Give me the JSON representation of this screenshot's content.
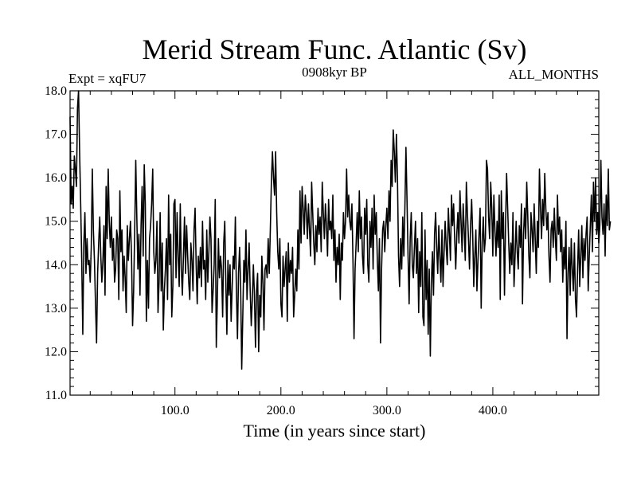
{
  "chart_data": {
    "type": "line",
    "title": "Merid Stream Func. Atlantic (Sv)",
    "subtitle_left": "Expt = xqFU7",
    "subtitle_center": "0908kyr BP",
    "subtitle_right": "ALL_MONTHS",
    "xlabel": "Time (in years since start)",
    "ylabel": "",
    "xlim": [
      1,
      500
    ],
    "ylim": [
      11.0,
      18.0
    ],
    "x_ticks": [
      100,
      200,
      300,
      400
    ],
    "x_tick_labels": [
      "100.0",
      "200.0",
      "300.0",
      "400.0"
    ],
    "y_ticks": [
      11,
      12,
      13,
      14,
      15,
      16,
      17,
      18
    ],
    "y_tick_labels": [
      "11.0",
      "12.0",
      "13.0",
      "14.0",
      "15.0",
      "16.0",
      "17.0",
      "18.0"
    ],
    "grid": false,
    "series": [
      {
        "name": "Merid Stream Func. Atlantic",
        "color": "#000000",
        "x_start": 1,
        "x_step": 1,
        "values": [
          17.4,
          15.4,
          15.8,
          15.3,
          16.5,
          16.2,
          15.8,
          17.6,
          18.0,
          16.6,
          15.4,
          14.1,
          12.4,
          14.5,
          15.2,
          13.8,
          14.6,
          14.0,
          14.1,
          13.6,
          14.4,
          16.2,
          14.8,
          14.1,
          13.1,
          12.2,
          13.8,
          14.5,
          15.1,
          14.2,
          13.6,
          14.1,
          14.9,
          13.3,
          15.8,
          14.6,
          16.2,
          15.0,
          14.4,
          15.1,
          14.1,
          14.6,
          13.6,
          13.9,
          14.8,
          14.6,
          13.2,
          15.7,
          14.3,
          14.8,
          13.4,
          14.2,
          13.7,
          12.9,
          14.9,
          14.1,
          14.6,
          15.0,
          14.2,
          12.6,
          13.4,
          14.8,
          16.4,
          15.1,
          13.9,
          14.7,
          13.3,
          14.9,
          15.8,
          14.2,
          16.3,
          15.4,
          12.7,
          14.1,
          13.0,
          14.6,
          14.9,
          15.4,
          16.2,
          14.3,
          13.8,
          14.1,
          15.0,
          12.9,
          13.6,
          15.2,
          13.4,
          14.5,
          12.5,
          13.4,
          13.9,
          14.6,
          13.2,
          15.6,
          14.0,
          14.7,
          12.8,
          13.5,
          15.4,
          15.5,
          13.7,
          15.2,
          14.2,
          13.5,
          15.4,
          13.9,
          13.3,
          14.2,
          15.1,
          13.8,
          14.9,
          14.2,
          13.6,
          13.2,
          14.5,
          14.1,
          13.4,
          14.8,
          15.3,
          14.0,
          13.1,
          14.2,
          13.7,
          14.4,
          13.5,
          15.0,
          13.9,
          14.1,
          13.2,
          14.8,
          13.6,
          14.3,
          15.1,
          14.6,
          12.9,
          13.4,
          14.0,
          15.5,
          12.1,
          13.2,
          14.6,
          13.7,
          14.2,
          13.9,
          12.8,
          14.5,
          15.0,
          13.6,
          12.4,
          14.1,
          13.3,
          14.0,
          12.7,
          13.5,
          14.2,
          13.9,
          15.1,
          13.4,
          12.3,
          13.8,
          14.4,
          13.5,
          11.6,
          12.8,
          14.1,
          13.6,
          14.8,
          13.2,
          13.9,
          14.5,
          13.4,
          12.6,
          13.2,
          14.0,
          13.3,
          12.1,
          13.4,
          13.8,
          12.0,
          13.3,
          12.8,
          14.2,
          13.6,
          12.5,
          13.9,
          14.0,
          13.7,
          14.6,
          13.8,
          14.8,
          15.9,
          16.6,
          16.0,
          15.6,
          16.6,
          15.2,
          14.3,
          13.9,
          14.6,
          13.1,
          12.8,
          14.2,
          13.5,
          13.9,
          14.3,
          12.7,
          14.5,
          13.6,
          14.1,
          13.8,
          14.4,
          12.8,
          13.3,
          13.9,
          13.4,
          14.8,
          13.9,
          15.7,
          14.5,
          15.8,
          15.3,
          14.7,
          15.6,
          15.2,
          14.6,
          15.4,
          14.8,
          14.2,
          15.9,
          15.2,
          14.5,
          14.0,
          14.9,
          14.3,
          15.3,
          14.7,
          15.1,
          14.3,
          15.9,
          15.2,
          14.6,
          15.4,
          14.9,
          14.2,
          15.5,
          14.8,
          15.0,
          14.6,
          15.6,
          14.1,
          14.8,
          13.6,
          14.4,
          14.0,
          14.7,
          13.2,
          14.5,
          14.1,
          15.2,
          14.6,
          15.0,
          16.2,
          15.1,
          15.6,
          15.0,
          14.8,
          15.4,
          14.1,
          12.3,
          13.9,
          14.5,
          15.2,
          14.3,
          15.7,
          14.6,
          15.1,
          14.2,
          13.8,
          15.3,
          14.7,
          15.5,
          14.0,
          13.6,
          15.0,
          14.4,
          15.3,
          13.9,
          15.6,
          14.7,
          15.2,
          14.1,
          13.4,
          14.6,
          12.2,
          13.9,
          14.8,
          15.0,
          14.3,
          14.9,
          15.3,
          14.6,
          15.7,
          15.0,
          16.4,
          15.8,
          17.1,
          16.6,
          15.9,
          17.0,
          16.0,
          14.2,
          13.5,
          14.6,
          13.9,
          15.1,
          14.2,
          15.3,
          16.7,
          15.5,
          14.2,
          13.1,
          14.6,
          15.2,
          14.0,
          13.7,
          14.4,
          15.0,
          13.8,
          14.6,
          12.9,
          14.3,
          13.5,
          15.2,
          12.8,
          12.6,
          14.8,
          13.2,
          14.1,
          12.4,
          13.9,
          11.9,
          13.6,
          14.3,
          13.3,
          14.7,
          15.2,
          14.4,
          13.8,
          14.9,
          14.2,
          13.6,
          14.8,
          13.5,
          14.3,
          15.0,
          14.4,
          14.0,
          15.3,
          14.7,
          14.1,
          15.6,
          14.9,
          15.4,
          14.6,
          13.9,
          14.7,
          15.2,
          14.5,
          15.7,
          15.0,
          14.3,
          15.4,
          14.8,
          14.1,
          15.9,
          15.2,
          14.6,
          13.9,
          14.9,
          15.5,
          14.7,
          13.5,
          14.2,
          14.8,
          13.4,
          14.1,
          14.7,
          15.3,
          13.0,
          14.5,
          15.1,
          14.3,
          14.6,
          16.4,
          16.2,
          15.1,
          14.6,
          15.9,
          15.3,
          14.2,
          15.6,
          14.8,
          14.2,
          15.0,
          14.4,
          15.6,
          13.2,
          15.7,
          14.6,
          15.2,
          13.3,
          14.9,
          16.1,
          15.3,
          14.5,
          13.8,
          14.5,
          14.0,
          15.2,
          13.5,
          14.2,
          15.0,
          14.3,
          13.9,
          14.9,
          14.4,
          15.4,
          13.1,
          14.7,
          15.3,
          14.6,
          15.9,
          15.1,
          14.2,
          13.7,
          15.2,
          14.8,
          14.3,
          15.4,
          14.6,
          13.8,
          15.0,
          14.4,
          16.2,
          15.3,
          14.6,
          15.5,
          14.9,
          16.1,
          15.3,
          14.8,
          15.2,
          14.2,
          13.6,
          14.8,
          15.0,
          14.4,
          15.3,
          14.6,
          14.1,
          15.6,
          14.7,
          15.1,
          14.3,
          14.8,
          13.6,
          14.4,
          13.9,
          15.0,
          12.3,
          13.8,
          14.4,
          13.3,
          14.6,
          13.9,
          13.4,
          14.5,
          13.2,
          12.8,
          13.9,
          14.8,
          13.5,
          14.2,
          14.9,
          13.7,
          14.6,
          14.1,
          14.7,
          15.1,
          13.4,
          14.2,
          14.9,
          15.6,
          14.3,
          15.9,
          15.0,
          16.0,
          14.7,
          15.2,
          14.5,
          14.9,
          16.4,
          15.1,
          14.7,
          15.4,
          14.2,
          15.6,
          14.9,
          16.2,
          14.8,
          15.0
        ]
      }
    ]
  }
}
